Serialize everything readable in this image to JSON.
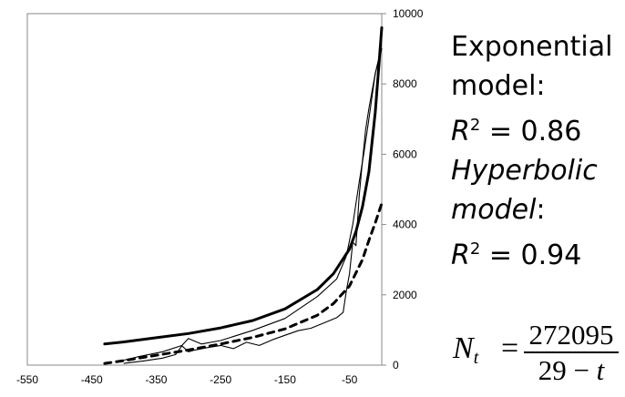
{
  "chart_data": {
    "type": "line",
    "x_ticks": [
      -550,
      -450,
      -350,
      -250,
      -150,
      -50
    ],
    "y_ticks": [
      0,
      2000,
      4000,
      6000,
      8000,
      10000
    ],
    "xlim": [
      -550,
      0
    ],
    "ylim": [
      0,
      10000
    ],
    "grid": false,
    "legend": "none",
    "series": [
      {
        "style": "solid-thick",
        "x": [
          -430,
          -400,
          -350,
          -300,
          -250,
          -200,
          -150,
          -100,
          -75,
          -50,
          -40,
          -30,
          -20,
          -10,
          -5,
          0
        ],
        "y": [
          600,
          660,
          780,
          900,
          1060,
          1270,
          1600,
          2150,
          2600,
          3300,
          3800,
          4500,
          5500,
          7200,
          8400,
          9600
        ]
      },
      {
        "style": "dashed-thick",
        "x": [
          -430,
          -400,
          -350,
          -300,
          -250,
          -200,
          -150,
          -100,
          -75,
          -50,
          -30,
          -20,
          -10,
          0
        ],
        "y": [
          50,
          130,
          280,
          430,
          600,
          790,
          1030,
          1420,
          1750,
          2250,
          3000,
          3550,
          4050,
          4600
        ]
      },
      {
        "style": "solid-thin-smooth",
        "x": [
          -410,
          -380,
          -340,
          -310,
          -300,
          -280,
          -250,
          -200,
          -150,
          -100,
          -70,
          -55,
          -45,
          -35,
          -28,
          -20,
          -10,
          0
        ],
        "y": [
          100,
          230,
          380,
          560,
          760,
          600,
          700,
          990,
          1330,
          1950,
          2450,
          3100,
          4000,
          5200,
          6000,
          7000,
          8300,
          9000
        ]
      },
      {
        "style": "solid-thin-jagged",
        "x": [
          -400,
          -370,
          -340,
          -320,
          -310,
          -300,
          -290,
          -270,
          -250,
          -230,
          -210,
          -190,
          -170,
          -150,
          -130,
          -110,
          -90,
          -70,
          -60,
          -55,
          -50,
          -45,
          -40,
          -35,
          -30,
          -25,
          -20,
          -15,
          -10,
          -5,
          0
        ],
        "y": [
          50,
          120,
          200,
          300,
          550,
          380,
          430,
          500,
          560,
          470,
          650,
          560,
          720,
          850,
          980,
          1050,
          1200,
          1350,
          1500,
          2100,
          2600,
          3500,
          3400,
          4800,
          5800,
          6700,
          7300,
          7800,
          8300,
          8700,
          9300
        ]
      }
    ]
  },
  "annotations": {
    "line1": "Exponential",
    "line2": "model:",
    "r2_a_var": "R",
    "r2_a_exp": "2",
    "r2_a_rest": " = 0.86",
    "line4": "Hyperbolic",
    "line5_ital": "model",
    "line5_rest": ":",
    "r2_b_var": "R",
    "r2_b_exp": "2",
    "r2_b_rest": " = 0.94"
  },
  "formula": {
    "lhs_var": "N",
    "lhs_sub": "t",
    "equals": "=",
    "numerator": "272095",
    "den_const": "29",
    "den_op": " − ",
    "den_var": "t"
  }
}
